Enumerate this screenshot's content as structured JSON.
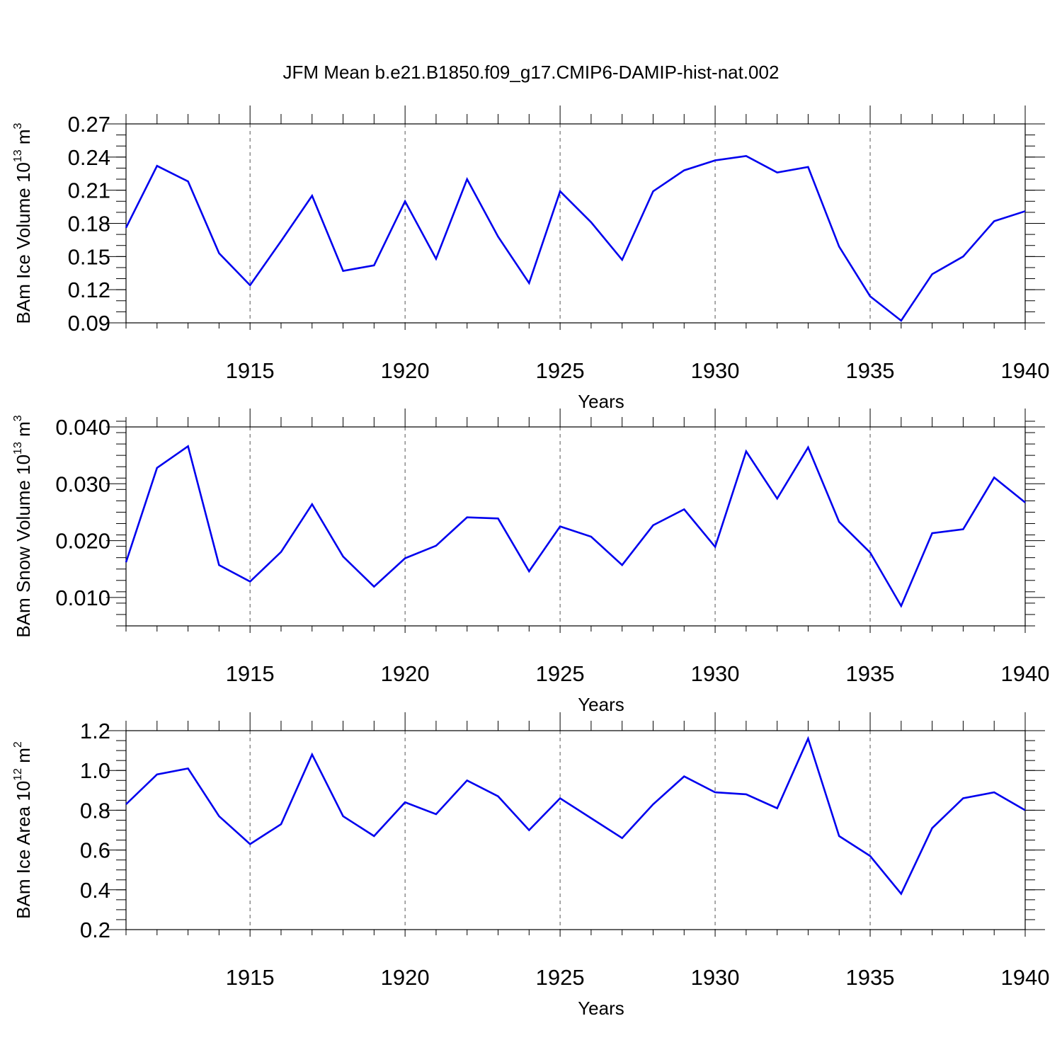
{
  "title": "JFM Mean b.e21.B1850.f09_g17.CMIP6-DAMIP-hist-nat.002",
  "colors": {
    "line": "#0000ee",
    "axis": "#000000",
    "grid": "#555555"
  },
  "chart_data": [
    {
      "type": "line",
      "xlabel": "Years",
      "ylabel": {
        "text": "BAm Ice Volume 10",
        "exponent": "13",
        "unit": " m",
        "unit_exponent": "3"
      },
      "xlim": [
        1911,
        1940
      ],
      "ylim": [
        0.09,
        0.27
      ],
      "x_ticks": [
        1915,
        1920,
        1925,
        1930,
        1935,
        1940
      ],
      "x_tick_labels": [
        "1915",
        "1920",
        "1925",
        "1930",
        "1935",
        "1940"
      ],
      "y_ticks": [
        0.09,
        0.12,
        0.15,
        0.18,
        0.21,
        0.24,
        0.27
      ],
      "y_tick_labels": [
        "0.09",
        "0.12",
        "0.15",
        "0.18",
        "0.21",
        "0.24",
        "0.27"
      ],
      "y_minor_step": 0.01,
      "grid": "vertical-dashed",
      "x": [
        1911,
        1912,
        1913,
        1914,
        1915,
        1916,
        1917,
        1918,
        1919,
        1920,
        1921,
        1922,
        1923,
        1924,
        1925,
        1926,
        1927,
        1928,
        1929,
        1930,
        1931,
        1932,
        1933,
        1934,
        1935,
        1936,
        1937,
        1938,
        1939,
        1940
      ],
      "values": [
        0.176,
        0.232,
        0.218,
        0.153,
        0.124,
        0.164,
        0.205,
        0.137,
        0.142,
        0.2,
        0.148,
        0.22,
        0.168,
        0.126,
        0.209,
        0.181,
        0.147,
        0.209,
        0.228,
        0.237,
        0.241,
        0.226,
        0.231,
        0.159,
        0.114,
        0.092,
        0.134,
        0.15,
        0.182,
        0.191
      ]
    },
    {
      "type": "line",
      "xlabel": "Years",
      "ylabel": {
        "text": "BAm Snow Volume 10",
        "exponent": "13",
        "unit": " m",
        "unit_exponent": "3"
      },
      "xlim": [
        1911,
        1940
      ],
      "ylim": [
        0.005,
        0.04
      ],
      "x_ticks": [
        1915,
        1920,
        1925,
        1930,
        1935,
        1940
      ],
      "x_tick_labels": [
        "1915",
        "1920",
        "1925",
        "1930",
        "1935",
        "1940"
      ],
      "y_ticks": [
        0.01,
        0.02,
        0.03,
        0.04
      ],
      "y_tick_labels": [
        "0.010",
        "0.020",
        "0.030",
        "0.040"
      ],
      "y_minor_step": 0.002,
      "grid": "vertical-dashed",
      "x": [
        1911,
        1912,
        1913,
        1914,
        1915,
        1916,
        1917,
        1918,
        1919,
        1920,
        1921,
        1922,
        1923,
        1924,
        1925,
        1926,
        1927,
        1928,
        1929,
        1930,
        1931,
        1932,
        1933,
        1934,
        1935,
        1936,
        1937,
        1938,
        1939,
        1940
      ],
      "values": [
        0.0162,
        0.0328,
        0.0366,
        0.0157,
        0.0128,
        0.018,
        0.0264,
        0.0172,
        0.0119,
        0.0169,
        0.0191,
        0.0241,
        0.0239,
        0.0146,
        0.0225,
        0.0207,
        0.0157,
        0.0227,
        0.0255,
        0.0189,
        0.0357,
        0.0274,
        0.0364,
        0.0233,
        0.0179,
        0.0085,
        0.0213,
        0.022,
        0.0311,
        0.0267
      ]
    },
    {
      "type": "line",
      "xlabel": "Years",
      "ylabel": {
        "text": "BAm Ice Area 10",
        "exponent": "12",
        "unit": " m",
        "unit_exponent": "2"
      },
      "xlim": [
        1911,
        1940
      ],
      "ylim": [
        0.2,
        1.2
      ],
      "x_ticks": [
        1915,
        1920,
        1925,
        1930,
        1935,
        1940
      ],
      "x_tick_labels": [
        "1915",
        "1920",
        "1925",
        "1930",
        "1935",
        "1940"
      ],
      "y_ticks": [
        0.2,
        0.4,
        0.6,
        0.8,
        1.0,
        1.2
      ],
      "y_tick_labels": [
        "0.2",
        "0.4",
        "0.6",
        "0.8",
        "1.0",
        "1.2"
      ],
      "y_minor_step": 0.05,
      "grid": "vertical-dashed",
      "x": [
        1911,
        1912,
        1913,
        1914,
        1915,
        1916,
        1917,
        1918,
        1919,
        1920,
        1921,
        1922,
        1923,
        1924,
        1925,
        1926,
        1927,
        1928,
        1929,
        1930,
        1931,
        1932,
        1933,
        1934,
        1935,
        1936,
        1937,
        1938,
        1939,
        1940
      ],
      "values": [
        0.83,
        0.98,
        1.01,
        0.77,
        0.63,
        0.73,
        1.08,
        0.77,
        0.67,
        0.84,
        0.78,
        0.95,
        0.87,
        0.7,
        0.86,
        0.76,
        0.66,
        0.83,
        0.97,
        0.89,
        0.88,
        0.81,
        1.16,
        0.67,
        0.57,
        0.38,
        0.71,
        0.86,
        0.89,
        0.8
      ]
    }
  ]
}
